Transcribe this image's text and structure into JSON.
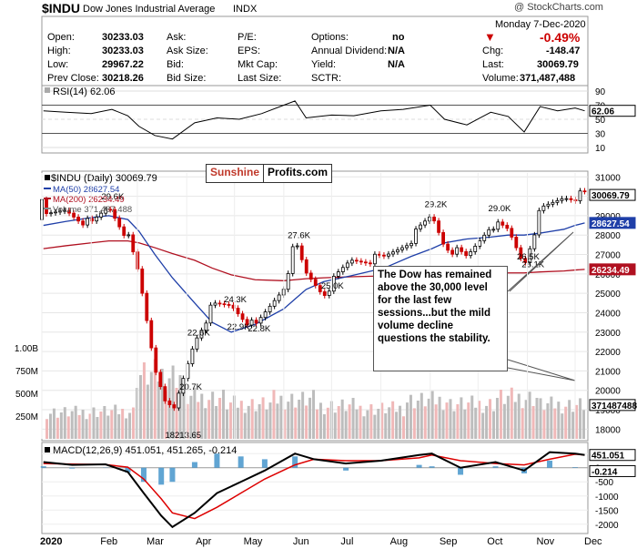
{
  "header": {
    "symbol": "$INDU",
    "name": "Dow Jones Industrial Average",
    "exchange": "INDX",
    "copyright": "@ StockCharts.com",
    "date": "Monday  7-Dec-2020",
    "change_pct": "-0.49%",
    "fields": {
      "open_label": "Open:",
      "open": "30233.03",
      "high_label": "High:",
      "high": "30233.03",
      "low_label": "Low:",
      "low": "29967.22",
      "prev_label": "Prev Close:",
      "prev": "30218.26",
      "ask_label": "Ask:",
      "asksize_label": "Ask Size:",
      "bid_label": "Bid:",
      "bidsize_label": "Bid Size:",
      "pe_label": "P/E:",
      "eps_label": "EPS:",
      "mktcap_label": "Mkt Cap:",
      "lastsize_label": "Last Size:",
      "options_label": "Options:",
      "options": "no",
      "div_label": "Annual Dividend:",
      "div": "N/A",
      "yield_label": "Yield:",
      "yield": "N/A",
      "sctr_label": "SCTR:",
      "chg_label": "Chg:",
      "chg": "-148.47",
      "last_label": "Last:",
      "last": "30069.79",
      "vol_label": "Volume:",
      "vol": "371,487,488"
    }
  },
  "logo": {
    "left": "Sunshine",
    "right": "Profits.com"
  },
  "annotation": {
    "text": "The Dow has remained above the 30,000 level for the last few sessions...but the mild volume decline questions the stability."
  },
  "colors": {
    "up": "#000000",
    "down": "#cc0000",
    "ma50": "#1f3fa8",
    "ma200": "#b01020",
    "rsi": "#000000",
    "macd": "#000000",
    "signal": "#dd0000",
    "hist": "#3a8fc8",
    "vol_up": "#bdbdbd",
    "vol_down": "#f0b8b8"
  },
  "chart_data": [
    {
      "panel": "RSI",
      "type": "line",
      "title": "RSI(14) 62.06",
      "ylim": [
        10,
        90
      ],
      "yticks": [
        10,
        30,
        50,
        70,
        90
      ],
      "last_label": "62.06",
      "x": [
        "2020-01-02",
        "2020-01-16",
        "2020-02-01",
        "2020-02-14",
        "2020-02-24",
        "2020-03-02",
        "2020-03-12",
        "2020-03-23",
        "2020-04-06",
        "2020-04-20",
        "2020-05-04",
        "2020-05-18",
        "2020-06-01",
        "2020-06-08",
        "2020-06-15",
        "2020-07-01",
        "2020-07-15",
        "2020-08-01",
        "2020-08-15",
        "2020-09-01",
        "2020-09-10",
        "2020-09-24",
        "2020-10-09",
        "2020-10-20",
        "2020-10-30",
        "2020-11-09",
        "2020-11-20",
        "2020-12-01",
        "2020-12-07"
      ],
      "values": [
        62,
        60,
        58,
        64,
        55,
        40,
        27,
        22,
        45,
        52,
        50,
        58,
        70,
        76,
        52,
        56,
        55,
        62,
        64,
        70,
        50,
        42,
        60,
        54,
        32,
        68,
        62,
        66,
        62
      ]
    },
    {
      "panel": "Price",
      "type": "candlestick",
      "title": "$INDU (Daily) 30069.79",
      "legend": [
        "MA(50) 28627.54",
        "MA(200) 26234.49",
        "Volume 371,487,488"
      ],
      "ylim": [
        17500,
        31200
      ],
      "yticks": [
        18000,
        19000,
        20000,
        21000,
        22000,
        23000,
        24000,
        25000,
        26000,
        27000,
        28000,
        29000,
        30000,
        31000
      ],
      "ma50_label": "28627.54",
      "ma200_label": "26234.49",
      "last_label": "30069.79",
      "x": [
        "2020-01-02",
        "2020-01-16",
        "2020-02-01",
        "2020-02-12",
        "2020-02-24",
        "2020-03-02",
        "2020-03-12",
        "2020-03-23",
        "2020-04-06",
        "2020-04-17",
        "2020-04-29",
        "2020-05-14",
        "2020-06-01",
        "2020-06-08",
        "2020-06-15",
        "2020-06-26",
        "2020-07-13",
        "2020-08-03",
        "2020-08-20",
        "2020-09-02",
        "2020-09-10",
        "2020-09-24",
        "2020-10-09",
        "2020-10-20",
        "2020-10-30",
        "2020-11-09",
        "2020-11-24",
        "2020-12-01",
        "2020-12-07"
      ],
      "close": [
        28800,
        29300,
        28500,
        29500,
        27900,
        25900,
        21200,
        18600,
        22600,
        24300,
        24400,
        23200,
        25400,
        27600,
        26000,
        25000,
        26700,
        26800,
        27800,
        29000,
        27500,
        26800,
        28600,
        28200,
        26500,
        29200,
        30000,
        30000,
        30070
      ],
      "ma50": [
        28500,
        28700,
        28900,
        29000,
        28800,
        28200,
        27000,
        25800,
        24500,
        23500,
        23000,
        23400,
        24200,
        24700,
        25200,
        25600,
        25900,
        26300,
        26900,
        27300,
        27600,
        27800,
        27900,
        28000,
        28000,
        28100,
        28300,
        28500,
        28627
      ],
      "ma200": [
        27300,
        27450,
        27600,
        27700,
        27700,
        27600,
        27350,
        27050,
        26700,
        26300,
        25950,
        25700,
        25650,
        25700,
        25750,
        25800,
        25850,
        25900,
        25950,
        26000,
        26000,
        26000,
        26000,
        26050,
        26050,
        26100,
        26150,
        26200,
        26234
      ],
      "labels": [
        {
          "text": "29.6K",
          "x": "2020-02-12",
          "y": 29600
        },
        {
          "text": "24.3K",
          "x": "2020-04-29",
          "y": 24300
        },
        {
          "text": "22.6K",
          "x": "2020-04-06",
          "y": 22600
        },
        {
          "text": "22.9K",
          "x": "2020-05-01",
          "y": 22900
        },
        {
          "text": "22.8K",
          "x": "2020-05-14",
          "y": 22800
        },
        {
          "text": "20.7K",
          "x": "2020-04-01",
          "y": 20700
        },
        {
          "text": "18213.65",
          "x": "2020-03-23",
          "y": 18213.65
        },
        {
          "text": "27.6K",
          "x": "2020-06-08",
          "y": 27600
        },
        {
          "text": "25.0K",
          "x": "2020-06-29",
          "y": 25000
        },
        {
          "text": "29.2K",
          "x": "2020-09-02",
          "y": 29200
        },
        {
          "text": "29.0K",
          "x": "2020-10-12",
          "y": 29000
        },
        {
          "text": "26.5K",
          "x": "2020-10-30",
          "y": 26500
        },
        {
          "text": "26.1K",
          "x": "2020-11-02",
          "y": 26100
        }
      ]
    },
    {
      "panel": "Volume",
      "type": "bar",
      "ylim": [
        0,
        1000000000
      ],
      "yticks": [
        250000000,
        500000000,
        750000000,
        1000000000
      ],
      "ytick_labels": [
        "250M",
        "500M",
        "750M",
        "1.00B"
      ],
      "last_label": "371487488",
      "x": [
        "2020-01",
        "2020-02",
        "2020-03",
        "2020-04",
        "2020-05",
        "2020-06",
        "2020-07",
        "2020-08",
        "2020-09",
        "2020-10",
        "2020-11",
        "2020-12"
      ],
      "values": [
        290000000,
        300000000,
        700000000,
        450000000,
        380000000,
        430000000,
        360000000,
        330000000,
        420000000,
        380000000,
        450000000,
        371487488
      ]
    },
    {
      "panel": "MACD",
      "type": "line",
      "title": "MACD(12,26,9) 451.051, 451.265, -0.214",
      "ylim": [
        -2200,
        700
      ],
      "yticks": [
        500,
        0,
        -500,
        -1000,
        -1500,
        -2000
      ],
      "last_labels": [
        "451.051",
        "-0.214"
      ],
      "x": [
        "2020-01-02",
        "2020-01-20",
        "2020-02-10",
        "2020-02-24",
        "2020-03-05",
        "2020-03-16",
        "2020-03-23",
        "2020-04-06",
        "2020-04-20",
        "2020-05-05",
        "2020-05-20",
        "2020-06-08",
        "2020-06-20",
        "2020-07-10",
        "2020-08-01",
        "2020-08-25",
        "2020-09-02",
        "2020-09-20",
        "2020-10-12",
        "2020-10-30",
        "2020-11-15",
        "2020-12-01",
        "2020-12-07"
      ],
      "macd": [
        200,
        100,
        120,
        -150,
        -900,
        -1700,
        -2100,
        -1600,
        -900,
        -500,
        -100,
        500,
        300,
        150,
        250,
        450,
        500,
        0,
        200,
        -100,
        550,
        500,
        451
      ],
      "signal": [
        150,
        130,
        110,
        20,
        -400,
        -1100,
        -1600,
        -1800,
        -1400,
        -900,
        -400,
        100,
        300,
        250,
        250,
        350,
        450,
        250,
        150,
        100,
        300,
        480,
        451
      ],
      "histogram": [
        50,
        -30,
        10,
        -170,
        -500,
        -600,
        -500,
        200,
        500,
        400,
        300,
        400,
        0,
        -100,
        0,
        100,
        50,
        -250,
        50,
        -200,
        250,
        20,
        -0.214
      ]
    }
  ],
  "xaxis": {
    "labels": [
      "2020",
      "Feb",
      "Mar",
      "Apr",
      "May",
      "Jun",
      "Jul",
      "Aug",
      "Sep",
      "Oct",
      "Nov",
      "Dec"
    ]
  }
}
